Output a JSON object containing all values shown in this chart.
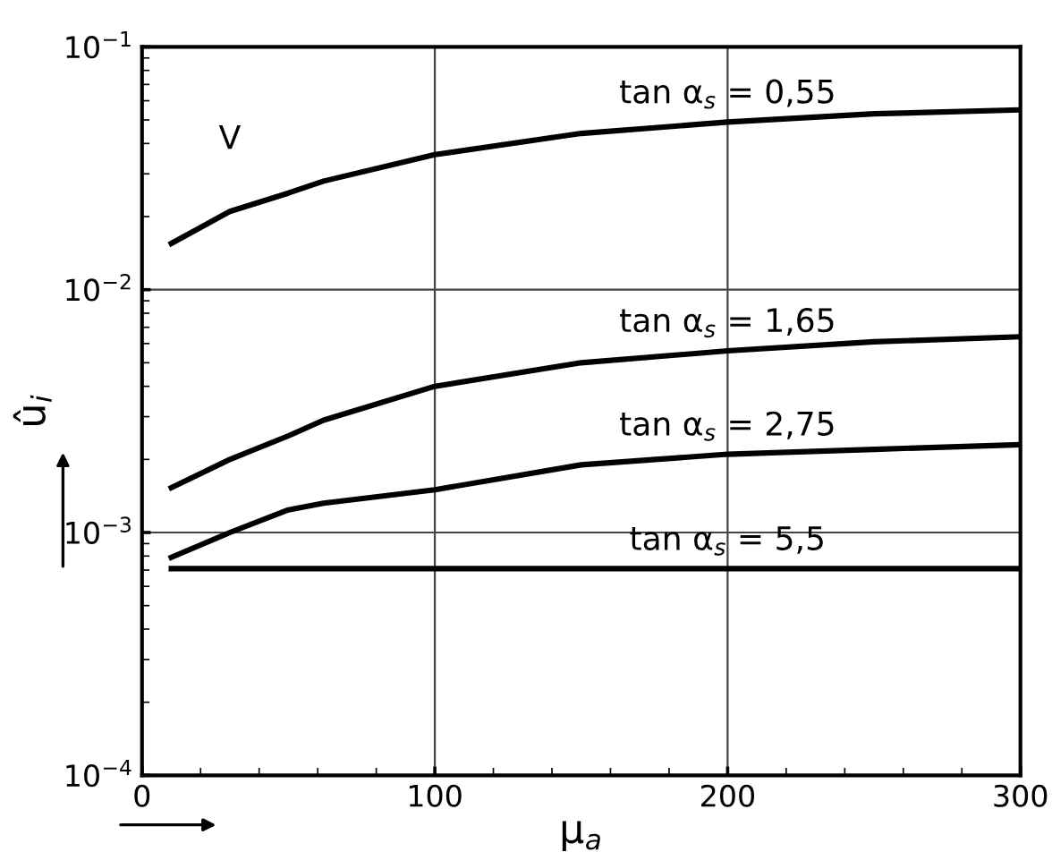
{
  "chart_data": {
    "type": "line",
    "xlabel": "μ$_{a}$",
    "ylabel": "û$_{i}$",
    "annotations": [
      "V"
    ],
    "x": [
      10,
      30,
      50,
      62,
      100,
      150,
      200,
      250,
      300
    ],
    "series": [
      {
        "name": "tan α$_{s}$ = 0,55",
        "color": "#000000",
        "values": [
          0.0155,
          0.021,
          0.025,
          0.028,
          0.036,
          0.044,
          0.049,
          0.053,
          0.055
        ]
      },
      {
        "name": "tan α$_{s}$ = 1,65",
        "color": "#000000",
        "values": [
          0.00153,
          0.002,
          0.0025,
          0.0029,
          0.004,
          0.005,
          0.0056,
          0.0061,
          0.0064
        ]
      },
      {
        "name": "tan α$_{s}$ = 2,75",
        "color": "#000000",
        "values": [
          0.00079,
          0.001,
          0.00124,
          0.00132,
          0.0015,
          0.0019,
          0.0021,
          0.0022,
          0.0023
        ]
      },
      {
        "name": "tan α$_{s}$ = 5,5",
        "color": "#000000",
        "values": [
          0.00071,
          0.00071,
          0.00071,
          0.00071,
          0.00071,
          0.00071,
          0.00071,
          0.00071,
          0.00071
        ]
      }
    ],
    "log": "y",
    "xlim": [
      0,
      300
    ],
    "xticks": [
      0,
      100,
      200,
      300
    ],
    "ylim": [
      0.0001,
      0.1
    ],
    "yticks": [
      {
        "value": 0.0001,
        "label": "10$^{−4}$"
      },
      {
        "value": 0.001,
        "label": "10$^{−3}$"
      },
      {
        "value": 0.01,
        "label": "10$^{−2}$"
      },
      {
        "value": 0.1,
        "label": "10$^{−1}$"
      }
    ],
    "grid": true,
    "legend": false,
    "marker": "none",
    "line_style": "solid"
  }
}
